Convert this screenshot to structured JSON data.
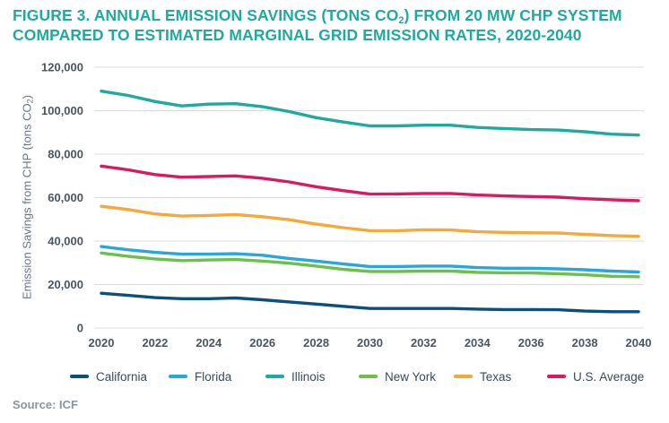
{
  "title": {
    "line1_pre": "FIGURE 3. ANNUAL EMISSION SAVINGS (TONS CO",
    "line1_sub": "2",
    "line1_post": ") FROM 20 MW CHP SYSTEM",
    "line2": "COMPARED TO ESTIMATED MARGINAL GRID EMISSION RATES, 2020-2040"
  },
  "source": "Source: ICF",
  "colors": {
    "title": "#1faaa0",
    "California": "#0b4f7c",
    "Florida": "#26a7de",
    "Illinois": "#1faaa0",
    "New York": "#6cbf4b",
    "Texas": "#f5a93b",
    "U.S. Average": "#d81b60",
    "grid": "#dcdcdc"
  },
  "chart_data": {
    "type": "line",
    "title": "FIGURE 3. ANNUAL EMISSION SAVINGS (TONS CO2) FROM 20 MW CHP SYSTEM COMPARED TO ESTIMATED MARGINAL GRID EMISSION RATES, 2020-2040",
    "xlabel": "",
    "ylabel_pre": "Emission Savings from CHP (tons CO",
    "ylabel_sub": "2",
    "ylabel_post": ")",
    "ylim": [
      0,
      120000
    ],
    "yticks": [
      0,
      20000,
      40000,
      60000,
      80000,
      100000,
      120000
    ],
    "ytick_labels": [
      "0",
      "20,000",
      "40,000",
      "60,000",
      "80,000",
      "100,000",
      "120,000"
    ],
    "x": [
      2020,
      2021,
      2022,
      2023,
      2024,
      2025,
      2026,
      2027,
      2028,
      2029,
      2030,
      2031,
      2032,
      2033,
      2034,
      2035,
      2036,
      2037,
      2038,
      2039,
      2040
    ],
    "xticks": [
      2020,
      2022,
      2024,
      2026,
      2028,
      2030,
      2032,
      2034,
      2036,
      2038,
      2040
    ],
    "grid": "horizontal",
    "legend_position": "bottom",
    "series": [
      {
        "name": "California",
        "values": [
          16000,
          15000,
          14000,
          13500,
          13500,
          13800,
          13000,
          12000,
          11000,
          10000,
          9000,
          9000,
          9000,
          9000,
          8700,
          8500,
          8500,
          8400,
          7800,
          7500,
          7500
        ]
      },
      {
        "name": "Florida",
        "values": [
          37500,
          36000,
          34800,
          34000,
          34000,
          34200,
          33500,
          32000,
          30800,
          29500,
          28300,
          28300,
          28500,
          28500,
          27800,
          27500,
          27500,
          27200,
          26800,
          26200,
          25800
        ]
      },
      {
        "name": "Illinois",
        "values": [
          109000,
          107000,
          104200,
          102200,
          103000,
          103200,
          101800,
          99600,
          96800,
          94800,
          93000,
          93000,
          93300,
          93300,
          92300,
          91800,
          91300,
          91100,
          90300,
          89200,
          88800
        ]
      },
      {
        "name": "New York",
        "values": [
          34500,
          33000,
          31800,
          31000,
          31300,
          31500,
          30800,
          29800,
          28500,
          27000,
          26000,
          26000,
          26200,
          26200,
          25600,
          25400,
          25300,
          25000,
          24500,
          23800,
          23600
        ]
      },
      {
        "name": "Texas",
        "values": [
          56000,
          54500,
          52500,
          51500,
          51800,
          52200,
          51200,
          49800,
          47800,
          46200,
          44800,
          44800,
          45200,
          45100,
          44300,
          44000,
          43800,
          43700,
          43100,
          42500,
          42200
        ]
      },
      {
        "name": "U.S. Average",
        "values": [
          74500,
          72800,
          70600,
          69400,
          69700,
          70000,
          68900,
          67200,
          65000,
          63200,
          61600,
          61700,
          61900,
          61900,
          61200,
          60800,
          60500,
          60200,
          59500,
          59000,
          58600
        ]
      }
    ]
  }
}
